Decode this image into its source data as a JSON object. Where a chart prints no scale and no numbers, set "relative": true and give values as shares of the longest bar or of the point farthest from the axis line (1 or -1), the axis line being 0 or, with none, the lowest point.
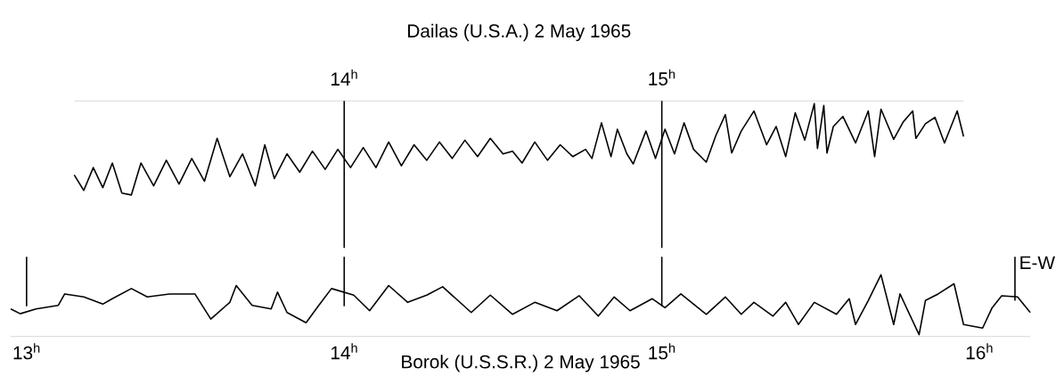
{
  "chart_data": [
    {
      "type": "line",
      "title": "Dailas (U.S.A.) 2 May 1965",
      "relative": true,
      "xlim": [
        13.15,
        15.95
      ],
      "xticks": [
        {
          "value": 14,
          "label": "14$^{h}$"
        },
        {
          "value": 15,
          "label": "15$^{h}$"
        }
      ],
      "ref_lines": [
        {
          "axis": "x",
          "value": 14
        },
        {
          "axis": "x",
          "value": 15
        }
      ],
      "series": [
        {
          "color": "#000000",
          "x": [
            13.15,
            13.18,
            13.21,
            13.24,
            13.27,
            13.3,
            13.33,
            13.36,
            13.4,
            13.44,
            13.48,
            13.52,
            13.56,
            13.6,
            13.64,
            13.68,
            13.72,
            13.75,
            13.78,
            13.82,
            13.86,
            13.9,
            13.94,
            13.98,
            14.02,
            14.06,
            14.1,
            14.14,
            14.18,
            14.22,
            14.26,
            14.3,
            14.34,
            14.38,
            14.42,
            14.46,
            14.5,
            14.53,
            14.56,
            14.6,
            14.64,
            14.68,
            14.72,
            14.76,
            14.78,
            14.81,
            14.84,
            14.86,
            14.89,
            14.91,
            14.95,
            14.98,
            15.01,
            15.04,
            15.07,
            15.1,
            15.14,
            15.17,
            15.2,
            15.22,
            15.25,
            15.29,
            15.33,
            15.36,
            15.39,
            15.42,
            15.45,
            15.48,
            15.49,
            15.51,
            15.52,
            15.54,
            15.57,
            15.61,
            15.65,
            15.67,
            15.69,
            15.73,
            15.76,
            15.79,
            15.8,
            15.83,
            15.86,
            15.89,
            15.93,
            15.95
          ],
          "values": [
            0.22,
            0.05,
            0.3,
            0.08,
            0.35,
            0.02,
            0.0,
            0.35,
            0.1,
            0.38,
            0.12,
            0.4,
            0.15,
            0.62,
            0.2,
            0.45,
            0.1,
            0.55,
            0.18,
            0.45,
            0.25,
            0.48,
            0.28,
            0.5,
            0.3,
            0.52,
            0.3,
            0.58,
            0.32,
            0.55,
            0.38,
            0.58,
            0.4,
            0.6,
            0.42,
            0.62,
            0.45,
            0.48,
            0.35,
            0.58,
            0.38,
            0.55,
            0.42,
            0.5,
            0.4,
            0.79,
            0.42,
            0.72,
            0.45,
            0.34,
            0.7,
            0.4,
            0.72,
            0.45,
            0.79,
            0.5,
            0.36,
            0.65,
            0.88,
            0.46,
            0.7,
            0.92,
            0.55,
            0.75,
            0.42,
            0.9,
            0.6,
            1.0,
            0.51,
            0.98,
            0.46,
            0.75,
            0.86,
            0.57,
            0.92,
            0.42,
            0.94,
            0.61,
            0.8,
            0.92,
            0.62,
            0.78,
            0.85,
            0.57,
            0.92,
            0.64
          ]
        }
      ]
    },
    {
      "type": "line",
      "xlabel": "Borok (U.S.S.R.) 2 May 1965",
      "relative": true,
      "xlim": [
        12.95,
        16.16
      ],
      "xticks": [
        {
          "value": 13,
          "label": "13$^{h}$"
        },
        {
          "value": 14,
          "label": "14$^{h}$"
        },
        {
          "value": 15,
          "label": "15$^{h}$"
        },
        {
          "value": 16,
          "label": "16$^{h}$"
        }
      ],
      "ref_lines": [
        {
          "axis": "x",
          "value": 13
        },
        {
          "axis": "x",
          "value": 14
        },
        {
          "axis": "x",
          "value": 15
        }
      ],
      "annotations": [
        "E-W"
      ],
      "series": [
        {
          "color": "#000000",
          "x": [
            12.95,
            12.98,
            13.03,
            13.1,
            13.12,
            13.18,
            13.24,
            13.27,
            13.33,
            13.38,
            13.45,
            13.53,
            13.58,
            13.64,
            13.66,
            13.71,
            13.77,
            13.79,
            13.82,
            13.88,
            13.92,
            13.96,
            14.03,
            14.08,
            14.14,
            14.2,
            14.26,
            14.31,
            14.4,
            14.46,
            14.53,
            14.6,
            14.67,
            14.74,
            14.8,
            14.85,
            14.9,
            14.97,
            15.01,
            15.06,
            15.14,
            15.2,
            15.25,
            15.29,
            15.35,
            15.39,
            15.43,
            15.48,
            15.55,
            15.59,
            15.61,
            15.65,
            15.69,
            15.73,
            15.75,
            15.81,
            15.83,
            15.87,
            15.92,
            15.95,
            16.01,
            16.04,
            16.07,
            16.12,
            16.16
          ],
          "values": [
            0.43,
            0.35,
            0.43,
            0.49,
            0.68,
            0.63,
            0.51,
            0.6,
            0.77,
            0.63,
            0.68,
            0.68,
            0.26,
            0.54,
            0.82,
            0.49,
            0.43,
            0.71,
            0.37,
            0.2,
            0.49,
            0.77,
            0.66,
            0.4,
            0.82,
            0.54,
            0.66,
            0.8,
            0.37,
            0.66,
            0.34,
            0.54,
            0.4,
            0.65,
            0.31,
            0.63,
            0.4,
            0.6,
            0.45,
            0.68,
            0.34,
            0.63,
            0.34,
            0.54,
            0.31,
            0.54,
            0.17,
            0.54,
            0.34,
            0.6,
            0.17,
            0.57,
            1.0,
            0.17,
            0.68,
            0.0,
            0.57,
            0.68,
            0.85,
            0.17,
            0.11,
            0.45,
            0.65,
            0.63,
            0.37
          ]
        }
      ]
    }
  ]
}
